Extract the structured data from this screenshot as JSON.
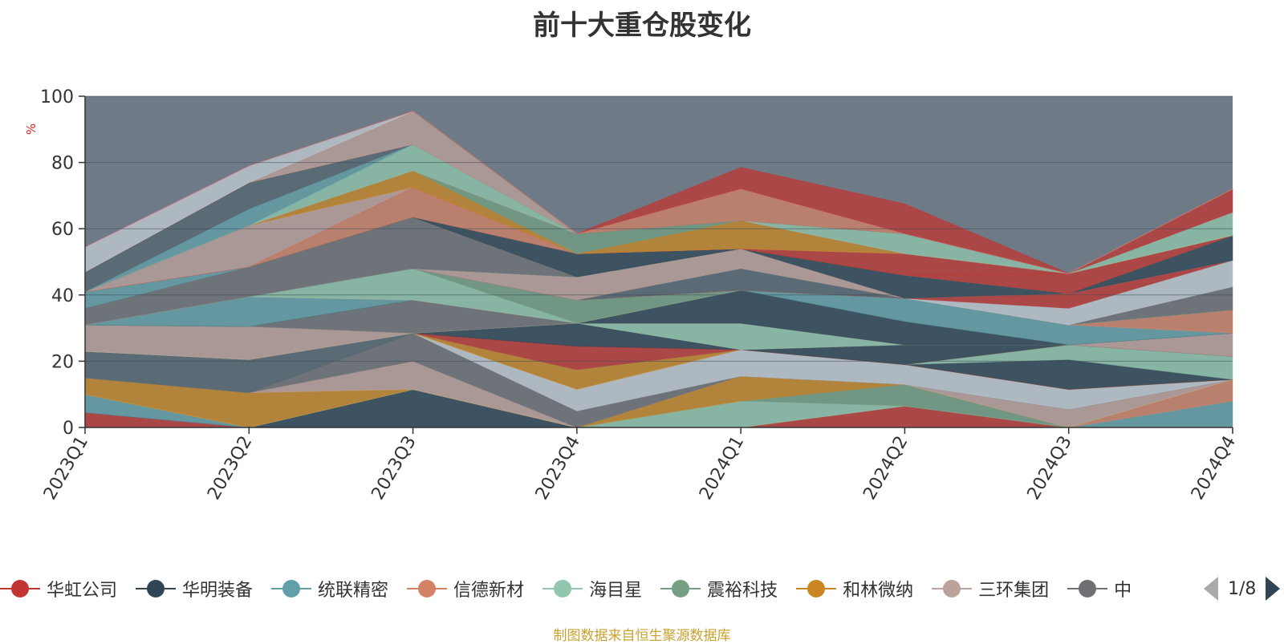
{
  "page": {
    "title": "前十大重仓股变化",
    "footer": "制图数据来自恒生聚源数据库"
  },
  "legend": {
    "page_indicator": "1/8"
  },
  "chart_data": {
    "type": "area",
    "title": "前十大重仓股变化",
    "ylabel": "%",
    "xlabel": "",
    "ylim": [
      0,
      100
    ],
    "yticks": [
      0,
      20,
      40,
      60,
      80,
      100
    ],
    "categories": [
      "2023Q1",
      "2023Q2",
      "2023Q3",
      "2023Q4",
      "2024Q1",
      "2024Q2",
      "2024Q3",
      "2024Q4"
    ],
    "grid": true,
    "legend_position": "bottom",
    "background_color": "#6e7b87",
    "series": [
      {
        "name": "华虹公司",
        "color": "#c23531",
        "values": [
          4.5,
          0,
          0,
          0,
          0,
          6.5,
          0,
          0
        ]
      },
      {
        "name": "华明装备",
        "color": "#2f4554",
        "values": [
          0,
          0,
          11.5,
          0,
          0,
          0,
          0,
          0
        ]
      },
      {
        "name": "统联精密",
        "color": "#61a0a8",
        "values": [
          5.5,
          0,
          0,
          0,
          0,
          0,
          0,
          8
        ]
      },
      {
        "name": "信德新材",
        "color": "#d48265",
        "values": [
          0,
          0,
          0,
          0,
          0,
          0,
          0,
          6.5
        ]
      },
      {
        "name": "海目星",
        "color": "#91c7ae",
        "values": [
          0,
          0,
          0,
          0,
          8,
          0,
          0,
          0
        ]
      },
      {
        "name": "震裕科技",
        "color": "#749f83",
        "values": [
          0,
          0,
          0,
          0,
          0,
          6.5,
          0,
          0
        ]
      },
      {
        "name": "和林微纳",
        "color": "#ca8622",
        "values": [
          5,
          10.5,
          0,
          0,
          7.5,
          0,
          0,
          0
        ]
      },
      {
        "name": "三环集团",
        "color": "#bda29a",
        "values": [
          0,
          0,
          8.5,
          0,
          0,
          0,
          5.5,
          0
        ]
      },
      {
        "name": "中",
        "color": "#6e7074",
        "values": [
          0,
          0,
          8.5,
          5,
          0,
          0,
          0,
          0
        ]
      },
      {
        "color": "#546570",
        "values": [
          8,
          10,
          0,
          0,
          0,
          0,
          0,
          0
        ]
      },
      {
        "color": "#c4ccd3",
        "values": [
          0,
          0,
          0,
          6.5,
          8,
          6,
          6,
          0
        ]
      },
      {
        "color": "#ca8622",
        "values": [
          0,
          0,
          0,
          6,
          0,
          0,
          0,
          0
        ]
      },
      {
        "color": "#c23531",
        "values": [
          0,
          0,
          0,
          0,
          0,
          0,
          0,
          0
        ]
      },
      {
        "color": "#2f4554",
        "values": [
          0,
          0,
          0,
          0,
          0,
          0,
          9,
          0
        ]
      },
      {
        "color": "#91c7ae",
        "values": [
          0,
          0,
          0,
          0,
          0,
          0,
          4.5,
          7
        ]
      },
      {
        "color": "#c23531",
        "values": [
          0,
          0,
          0,
          7,
          0,
          0,
          0,
          0
        ]
      },
      {
        "color": "#2f4554",
        "values": [
          0,
          0,
          0,
          7,
          0,
          6,
          0,
          0
        ]
      },
      {
        "color": "#bda29a",
        "values": [
          0,
          0,
          0,
          0,
          0,
          0,
          0,
          7
        ]
      },
      {
        "color": "#91c7ae",
        "values": [
          0,
          0,
          0,
          0,
          8,
          0,
          0,
          0
        ]
      },
      {
        "color": "#749f83",
        "values": [
          0,
          0,
          0,
          0,
          0,
          0,
          0,
          0
        ]
      },
      {
        "color": "#bda29a",
        "values": [
          8,
          10,
          0,
          0,
          0,
          0,
          0,
          0
        ]
      },
      {
        "color": "#6e7074",
        "values": [
          0,
          0,
          10,
          0,
          0,
          0,
          0,
          0
        ]
      },
      {
        "color": "#546570",
        "values": [
          0,
          0,
          0,
          0,
          0,
          0,
          0,
          0
        ]
      },
      {
        "color": "#2f4554",
        "values": [
          0,
          0,
          0,
          0,
          10,
          7,
          0,
          0
        ]
      },
      {
        "color": "#61a0a8",
        "values": [
          0,
          9,
          0,
          0,
          0,
          7,
          6,
          0
        ]
      },
      {
        "color": "#d48265",
        "values": [
          0,
          0,
          0,
          0,
          0,
          0,
          0,
          7
        ]
      },
      {
        "color": "#91c7ae",
        "values": [
          0,
          0,
          9.5,
          0,
          0,
          0,
          0,
          0
        ]
      },
      {
        "color": "#749f83",
        "values": [
          0,
          0,
          0,
          7,
          0,
          0,
          0,
          0
        ]
      },
      {
        "color": "#6e7074",
        "values": [
          0,
          0,
          0,
          0,
          0,
          0,
          0,
          7
        ]
      },
      {
        "color": "#c4ccd3",
        "values": [
          0,
          0,
          0,
          0,
          0,
          0,
          5,
          8
        ]
      },
      {
        "color": "#6e7074",
        "values": [
          5,
          9,
          0,
          0,
          0,
          0,
          0,
          0
        ]
      },
      {
        "color": "#c23531",
        "values": [
          0,
          0,
          0,
          0,
          0,
          0,
          4.5,
          0
        ]
      },
      {
        "color": "#546570",
        "values": [
          0,
          0,
          0,
          0,
          6.5,
          0,
          0,
          0
        ]
      },
      {
        "color": "#bda29a",
        "values": [
          0,
          0,
          0,
          7,
          6,
          0,
          0,
          0
        ]
      },
      {
        "color": "#2f4554",
        "values": [
          0,
          0,
          0,
          0,
          0,
          7,
          0,
          0
        ]
      },
      {
        "color": "#61a0a8",
        "values": [
          5,
          0,
          0,
          0,
          0,
          0,
          0,
          0
        ]
      },
      {
        "color": "#6e7074",
        "values": [
          0,
          0,
          15.5,
          0,
          0,
          0,
          0,
          0
        ]
      },
      {
        "color": "#2f4554",
        "values": [
          0,
          0,
          0,
          7,
          0,
          0,
          0,
          7.5
        ]
      },
      {
        "color": "#d48265",
        "values": [
          0,
          0,
          9,
          0,
          0,
          0,
          0,
          0
        ]
      },
      {
        "color": "#c23531",
        "values": [
          0,
          0,
          0,
          0,
          0,
          0,
          6,
          0
        ]
      },
      {
        "color": "#c23531",
        "values": [
          0,
          0,
          0,
          0,
          0,
          6.5,
          0,
          0
        ]
      },
      {
        "color": "#bda29a",
        "values": [
          0,
          12.5,
          0,
          0,
          0,
          0,
          0,
          0
        ]
      },
      {
        "color": "#ca8622",
        "values": [
          0,
          0,
          5,
          0,
          8.5,
          0,
          0,
          0
        ]
      },
      {
        "color": "#749f83",
        "values": [
          0,
          0,
          0,
          6,
          0,
          0,
          0,
          0
        ]
      },
      {
        "color": "#91c7ae",
        "values": [
          0,
          0,
          0,
          0,
          0,
          0,
          0,
          7
        ]
      },
      {
        "color": "#c23531",
        "values": [
          0,
          0,
          0,
          0,
          0,
          0,
          0,
          7
        ]
      },
      {
        "color": "#91c7ae",
        "values": [
          0,
          0,
          8,
          0,
          0,
          6,
          0,
          0
        ]
      },
      {
        "color": "#61a0a8",
        "values": [
          0,
          5,
          0,
          0,
          0,
          0,
          0,
          0
        ]
      },
      {
        "color": "#546570",
        "values": [
          6,
          8,
          0,
          0,
          0,
          0,
          0,
          0
        ]
      },
      {
        "color": "#6e7074",
        "values": [
          0,
          0,
          0,
          0,
          0,
          0,
          0,
          0
        ]
      },
      {
        "color": "#d48265",
        "values": [
          0,
          0,
          0,
          0,
          9.5,
          0,
          0,
          0
        ]
      },
      {
        "color": "#bda29a",
        "values": [
          0,
          0,
          10,
          0,
          0,
          0,
          0,
          0
        ]
      },
      {
        "color": "#c4ccd3",
        "values": [
          7.5,
          5,
          0,
          0,
          0,
          0,
          0,
          0
        ]
      },
      {
        "color": "#c23531",
        "values": [
          0,
          0,
          0,
          0,
          6.5,
          9,
          0,
          0
        ]
      }
    ]
  }
}
